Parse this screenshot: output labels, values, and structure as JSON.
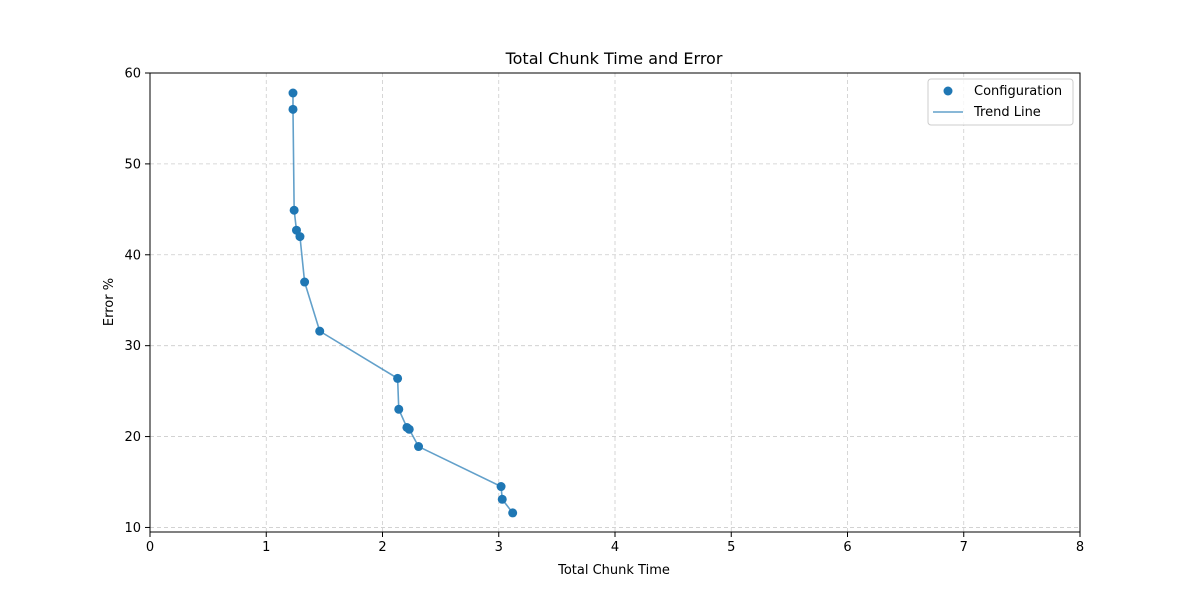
{
  "chart_data": {
    "type": "scatter",
    "title": "Total Chunk Time and Error",
    "xlabel": "Total Chunk Time",
    "ylabel": "Error %",
    "xlim": [
      0,
      8
    ],
    "ylim": [
      9.5,
      60
    ],
    "xticks": [
      0,
      1,
      2,
      3,
      4,
      5,
      6,
      7,
      8
    ],
    "yticks": [
      10,
      20,
      30,
      40,
      50,
      60
    ],
    "grid": true,
    "legend_position": "top-right",
    "colors": {
      "points": "#1f77b4",
      "line": "#1f77b4",
      "grid": "#cccccc"
    },
    "series": [
      {
        "name": "Configuration",
        "kind": "scatter",
        "x": [
          1.23,
          1.23,
          1.24,
          1.26,
          1.29,
          1.33,
          1.46,
          2.13,
          2.14,
          2.21,
          2.23,
          2.31,
          3.02,
          3.03,
          3.12
        ],
        "y": [
          57.8,
          56.0,
          44.9,
          42.7,
          42.0,
          37.0,
          31.6,
          26.4,
          23.0,
          21.0,
          20.8,
          18.9,
          14.5,
          13.1,
          11.6
        ]
      },
      {
        "name": "Trend Line",
        "kind": "line",
        "x": [
          1.23,
          1.23,
          1.24,
          1.26,
          1.29,
          1.33,
          1.46,
          2.13,
          2.14,
          2.21,
          2.23,
          2.31,
          3.02,
          3.03,
          3.12
        ],
        "y": [
          57.8,
          56.0,
          44.9,
          42.7,
          42.0,
          37.0,
          31.6,
          26.4,
          23.0,
          21.0,
          20.8,
          18.9,
          14.5,
          13.1,
          11.6
        ]
      }
    ]
  }
}
